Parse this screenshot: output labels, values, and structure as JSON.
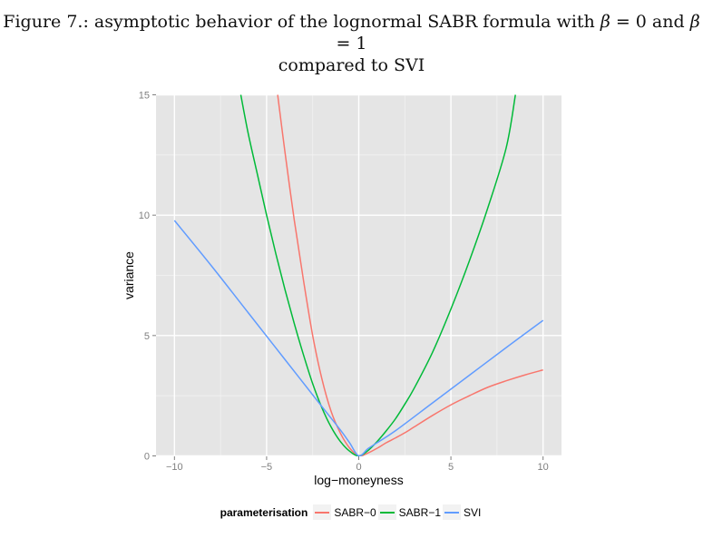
{
  "caption": {
    "line1_prefix": "Figure 7.: asymptotic behavior of the lognormal SABR formula with ",
    "beta_symbol": "β",
    "eq0": " = 0 and ",
    "eq1": " = 1",
    "line2": "compared to SVI"
  },
  "colors": {
    "panel_bg": "#e5e5e5",
    "grid_major": "#ffffff",
    "grid_minor": "#f2f2f2",
    "sabr0": "#f8766d",
    "sabr1": "#00ba38",
    "svi": "#619cff"
  },
  "legend": {
    "title": "parameterisation",
    "items": [
      {
        "label": "SABR−0",
        "color": "#f8766d"
      },
      {
        "label": "SABR−1",
        "color": "#00ba38"
      },
      {
        "label": "SVI",
        "color": "#619cff"
      }
    ]
  },
  "axes": {
    "xlabel": "log−moneyness",
    "ylabel": "variance",
    "xticks": [
      -10,
      -5,
      0,
      5,
      10
    ],
    "xtick_labels": [
      "−10",
      "−5",
      "0",
      "5",
      "10"
    ],
    "yticks": [
      0,
      5,
      10,
      15
    ],
    "ytick_labels": [
      "0",
      "5",
      "10",
      "15"
    ]
  },
  "chart_data": {
    "type": "line",
    "title": "Figure 7.: asymptotic behavior of the lognormal SABR formula with β = 0 and β = 1 compared to SVI",
    "xlabel": "log-moneyness",
    "ylabel": "variance",
    "xlim": [
      -11,
      11
    ],
    "ylim": [
      0,
      15
    ],
    "grid": true,
    "legend_position": "bottom",
    "legend_title": "parameterisation",
    "series": [
      {
        "name": "SABR-0",
        "x": [
          -4.4,
          -4.0,
          -3.5,
          -3.0,
          -2.5,
          -2.0,
          -1.5,
          -1.0,
          -0.5,
          0,
          0.5,
          1.0,
          1.5,
          2.0,
          2.5,
          3.0,
          4.0,
          5.0,
          6.0,
          7.0,
          8.0,
          9.0,
          10.0
        ],
        "y": [
          15.0,
          12.6,
          9.8,
          7.3,
          5.0,
          3.2,
          1.85,
          0.95,
          0.33,
          0.0,
          0.12,
          0.32,
          0.55,
          0.75,
          0.96,
          1.2,
          1.68,
          2.12,
          2.5,
          2.85,
          3.12,
          3.36,
          3.57
        ]
      },
      {
        "name": "SABR-1",
        "x": [
          -6.4,
          -6.0,
          -5.5,
          -5.0,
          -4.5,
          -4.0,
          -3.5,
          -3.0,
          -2.5,
          -2.0,
          -1.5,
          -1.0,
          -0.5,
          0,
          0.5,
          1.0,
          1.5,
          2.0,
          2.5,
          3.0,
          4.0,
          5.0,
          6.0,
          7.0,
          8.0,
          8.5
        ],
        "y": [
          15.0,
          13.4,
          11.7,
          10.0,
          8.4,
          6.9,
          5.5,
          4.2,
          3.0,
          2.0,
          1.2,
          0.6,
          0.2,
          0.0,
          0.22,
          0.6,
          1.05,
          1.55,
          2.15,
          2.8,
          4.3,
          6.1,
          8.1,
          10.3,
          12.8,
          15.0
        ]
      },
      {
        "name": "SVI",
        "x": [
          -10,
          -8,
          -6,
          -4,
          -2,
          -1,
          -0.5,
          0,
          0.5,
          1,
          2,
          4,
          6,
          8,
          10
        ],
        "y": [
          9.78,
          7.9,
          5.95,
          4.0,
          2.05,
          1.08,
          0.55,
          0.0,
          0.3,
          0.55,
          1.05,
          2.2,
          3.35,
          4.5,
          5.63
        ]
      }
    ]
  }
}
